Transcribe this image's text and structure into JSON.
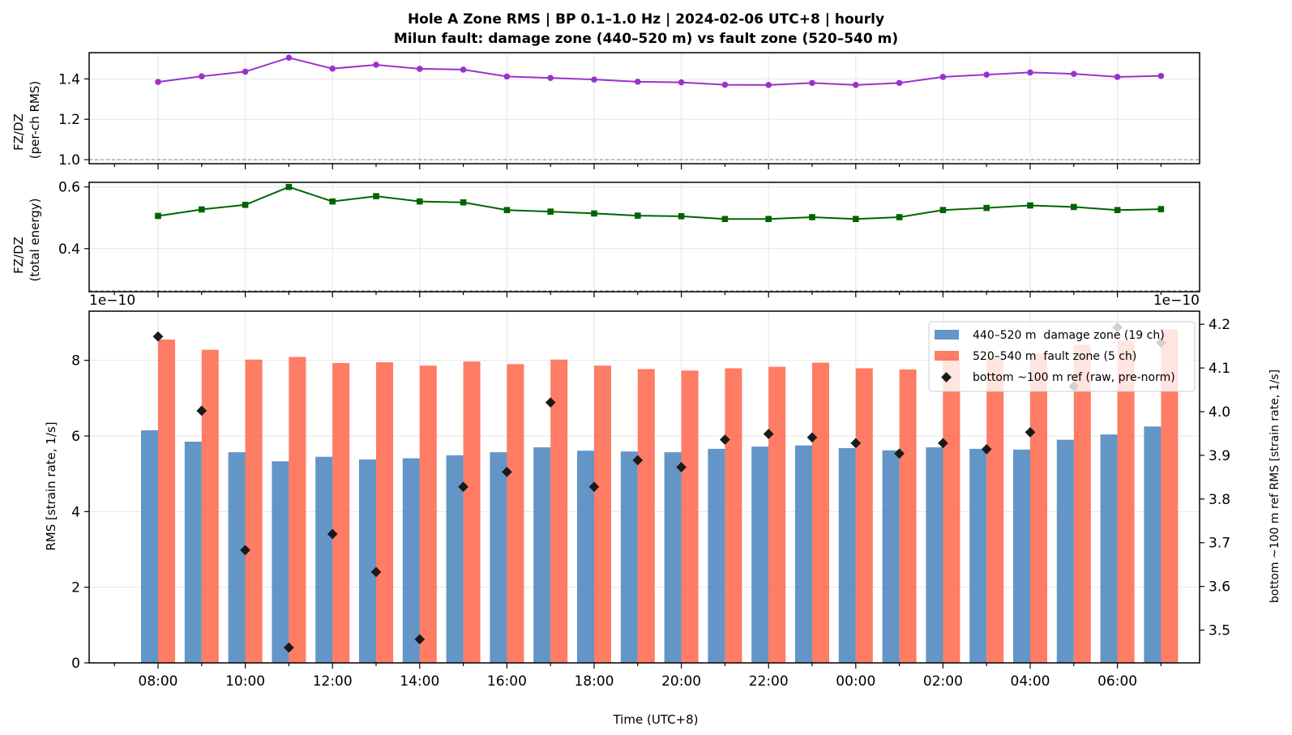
{
  "title_line1": "Hole A Zone RMS  |  BP 0.1–1.0 Hz  |  2024-02-06 UTC+8  |  hourly",
  "title_line2": "Milun fault: damage zone (440–520 m) vs fault zone (520–540 m)",
  "xlabel": "Time (UTC+8)",
  "x_tick_labels": [
    "08:00",
    "10:00",
    "12:00",
    "14:00",
    "16:00",
    "18:00",
    "20:00",
    "22:00",
    "00:00",
    "02:00",
    "04:00",
    "06:00",
    "08:00"
  ],
  "colors": {
    "ratio_rms": "#9932cc",
    "ratio_energy": "#006400",
    "damage_zone": "#4f86bf",
    "fault_zone": "#ff6a50",
    "bottom_ref": "#1a1a1a",
    "grid": "#e6e6e6"
  },
  "chart_data": [
    {
      "type": "line",
      "ylabel_line1": "FZ/DZ",
      "ylabel_line2": "(per-ch RMS)",
      "ylim": [
        0.98,
        1.53
      ],
      "yticks": [
        1.0,
        1.2,
        1.4
      ],
      "y_tick_labels": [
        "1.0",
        "1.2",
        "1.4"
      ],
      "reference_line": 1.0,
      "grid": true,
      "marker": "circle",
      "x": [
        "08:00",
        "09:00",
        "10:00",
        "11:00",
        "12:00",
        "13:00",
        "14:00",
        "15:00",
        "16:00",
        "17:00",
        "18:00",
        "19:00",
        "20:00",
        "21:00",
        "22:00",
        "23:00",
        "00:00",
        "01:00",
        "02:00",
        "03:00",
        "04:00",
        "05:00",
        "06:00",
        "07:00"
      ],
      "values": [
        1.385,
        1.413,
        1.436,
        1.505,
        1.451,
        1.47,
        1.45,
        1.446,
        1.412,
        1.405,
        1.397,
        1.386,
        1.383,
        1.371,
        1.37,
        1.38,
        1.37,
        1.38,
        1.41,
        1.421,
        1.432,
        1.425,
        1.41,
        1.415
      ]
    },
    {
      "type": "line",
      "ylabel_line1": "FZ/DZ",
      "ylabel_line2": "(total energy)",
      "ylim": [
        0.26,
        0.615
      ],
      "yticks": [
        0.4,
        0.6
      ],
      "y_tick_labels": [
        "0.4",
        "0.6"
      ],
      "reference_line": 0.263,
      "grid": true,
      "marker": "square",
      "x": [
        "08:00",
        "09:00",
        "10:00",
        "11:00",
        "12:00",
        "13:00",
        "14:00",
        "15:00",
        "16:00",
        "17:00",
        "18:00",
        "19:00",
        "20:00",
        "21:00",
        "22:00",
        "23:00",
        "00:00",
        "01:00",
        "02:00",
        "03:00",
        "04:00",
        "05:00",
        "06:00",
        "07:00"
      ],
      "values": [
        0.506,
        0.527,
        0.542,
        0.6,
        0.553,
        0.57,
        0.553,
        0.55,
        0.525,
        0.52,
        0.514,
        0.507,
        0.505,
        0.496,
        0.496,
        0.502,
        0.496,
        0.502,
        0.525,
        0.532,
        0.54,
        0.535,
        0.525,
        0.528
      ]
    },
    {
      "type": "bar",
      "ylabel": "RMS  [strain rate, 1/s]",
      "ylabel_right": "bottom ~100 m ref RMS  [strain rate, 1/s]",
      "y_offset_label": "1e−10",
      "y2_offset_label": "1e−10",
      "ylim": [
        0,
        9.3
      ],
      "yticks": [
        0,
        2,
        4,
        6,
        8
      ],
      "y_tick_labels": [
        "0",
        "2",
        "4",
        "6",
        "8"
      ],
      "y2lim": [
        3.425,
        4.23
      ],
      "y2ticks": [
        3.5,
        3.6,
        3.7,
        3.8,
        3.9,
        4.0,
        4.1,
        4.2
      ],
      "y2_tick_labels": [
        "3.5",
        "3.6",
        "3.7",
        "3.8",
        "3.9",
        "4.0",
        "4.1",
        "4.2"
      ],
      "grid": true,
      "legend_position": "upper right",
      "x": [
        "08:00",
        "09:00",
        "10:00",
        "11:00",
        "12:00",
        "13:00",
        "14:00",
        "15:00",
        "16:00",
        "17:00",
        "18:00",
        "19:00",
        "20:00",
        "21:00",
        "22:00",
        "23:00",
        "00:00",
        "01:00",
        "02:00",
        "03:00",
        "04:00",
        "05:00",
        "06:00",
        "07:00"
      ],
      "series": [
        {
          "name": "440–520 m  damage zone (19 ch)",
          "kind": "bar",
          "values": [
            6.15,
            5.85,
            5.57,
            5.33,
            5.45,
            5.38,
            5.41,
            5.49,
            5.57,
            5.7,
            5.61,
            5.59,
            5.57,
            5.66,
            5.72,
            5.75,
            5.68,
            5.62,
            5.7,
            5.66,
            5.64,
            5.9,
            6.04,
            6.25
          ]
        },
        {
          "name": "520–540 m  fault zone (5 ch)",
          "kind": "bar",
          "values": [
            8.55,
            8.28,
            8.02,
            8.09,
            7.93,
            7.95,
            7.86,
            7.97,
            7.9,
            8.02,
            7.86,
            7.77,
            7.73,
            7.79,
            7.83,
            7.94,
            7.79,
            7.76,
            8.07,
            8.05,
            8.17,
            8.41,
            8.52,
            8.82
          ]
        },
        {
          "name": "bottom ~100 m ref (raw, pre-norm)",
          "kind": "scatter",
          "axis": "right",
          "values": [
            4.172,
            4.002,
            3.683,
            3.46,
            3.72,
            3.633,
            3.479,
            3.828,
            3.862,
            4.021,
            3.828,
            3.889,
            3.873,
            3.936,
            3.949,
            3.941,
            3.928,
            3.904,
            3.928,
            3.914,
            3.953,
            4.058,
            4.193,
            4.158
          ]
        }
      ]
    }
  ]
}
